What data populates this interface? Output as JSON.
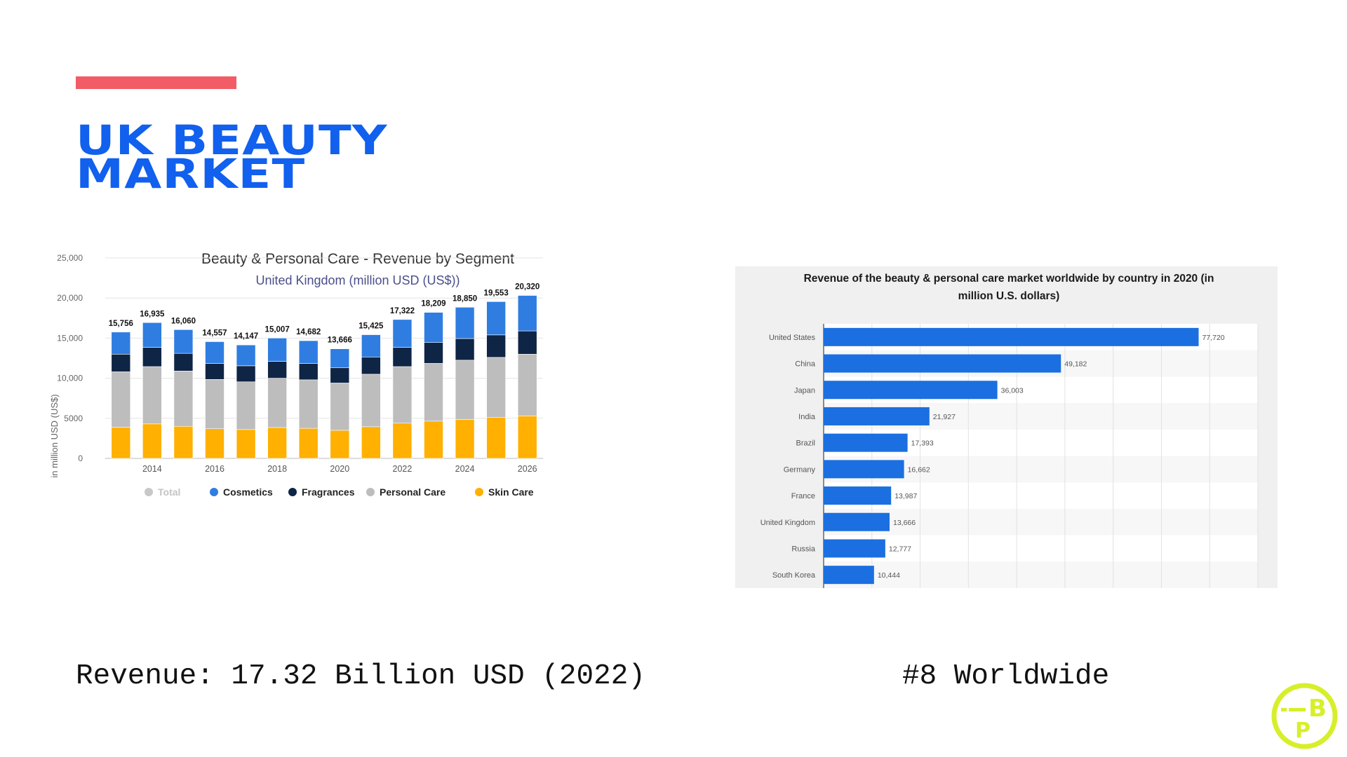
{
  "slide": {
    "title_line1": "UK BEAUTY",
    "title_line2": "MARKET",
    "revenue_caption": "Revenue: 17.32 Billion USD (2022)",
    "rank_caption": "#8 Worldwide",
    "accent_color": "#f25c66",
    "title_color": "#1160ee",
    "logo_color": "#d7ef2a",
    "logo_letters": [
      "B",
      "P"
    ]
  },
  "chart_data": [
    {
      "type": "bar",
      "stacked": true,
      "title": "Beauty & Personal Care - Revenue by Segment",
      "subtitle": "United Kingdom (million USD (US$))",
      "ylabel": "in million USD (US$)",
      "xlabel": "",
      "ylim": [
        0,
        25000
      ],
      "yticks": [
        0,
        5000,
        10000,
        15000,
        20000,
        25000
      ],
      "ytick_labels": [
        "0",
        "5000",
        "10,000",
        "15,000",
        "20,000",
        "25,000"
      ],
      "categories": [
        "2013",
        "2014",
        "2015",
        "2016",
        "2017",
        "2018",
        "2019",
        "2020",
        "2021",
        "2022",
        "2023",
        "2024",
        "2025",
        "2026"
      ],
      "xtick_labels": [
        "",
        "2014",
        "",
        "2016",
        "",
        "2018",
        "",
        "2020",
        "",
        "2022",
        "",
        "2024",
        "",
        "2026"
      ],
      "totals": [
        15756,
        16935,
        16060,
        14557,
        14147,
        15007,
        14682,
        13666,
        15425,
        17322,
        18209,
        18850,
        19553,
        20320
      ],
      "total_labels": [
        "15,756",
        "16,935",
        "16,060",
        "14,557",
        "14,147",
        "15,007",
        "14,682",
        "13,666",
        "15,425",
        "17,322",
        "18,209",
        "18,850",
        "19,553",
        "20,320"
      ],
      "series": [
        {
          "name": "Skin Care",
          "color": "#ffb000",
          "values": [
            3900,
            4300,
            4000,
            3700,
            3600,
            3850,
            3750,
            3500,
            3950,
            4400,
            4650,
            4850,
            5100,
            5300
          ]
        },
        {
          "name": "Personal Care",
          "color": "#bdbdbd",
          "values": [
            6900,
            7150,
            6900,
            6150,
            5950,
            6150,
            6050,
            5900,
            6550,
            7050,
            7200,
            7400,
            7500,
            7700
          ]
        },
        {
          "name": "Fragrances",
          "color": "#0f2545",
          "values": [
            2200,
            2400,
            2200,
            2000,
            2000,
            2100,
            2050,
            1900,
            2150,
            2400,
            2600,
            2700,
            2800,
            2900
          ]
        },
        {
          "name": "Cosmetics",
          "color": "#2f7de1",
          "values": [
            2756,
            3085,
            2960,
            2707,
            2597,
            2907,
            2832,
            2366,
            2775,
            3472,
            3759,
            3900,
            4153,
            4420
          ]
        }
      ],
      "legend": [
        {
          "name": "Total",
          "color": "#c8c8c8",
          "muted": true
        },
        {
          "name": "Cosmetics",
          "color": "#2f7de1",
          "muted": false
        },
        {
          "name": "Fragrances",
          "color": "#0f2545",
          "muted": false
        },
        {
          "name": "Personal Care",
          "color": "#bdbdbd",
          "muted": false
        },
        {
          "name": "Skin Care",
          "color": "#ffb000",
          "muted": false
        }
      ],
      "legend_position": "bottom",
      "grid": true
    },
    {
      "type": "bar",
      "orientation": "horizontal",
      "title_line1": "Revenue of the beauty & personal care market worldwide by country in 2020 (in",
      "title_line2": "million U.S. dollars)",
      "categories": [
        "United States",
        "China",
        "Japan",
        "India",
        "Brazil",
        "Germany",
        "France",
        "United Kingdom",
        "Russia",
        "South Korea"
      ],
      "values": [
        77720,
        49182,
        36003,
        21927,
        17393,
        16662,
        13987,
        13666,
        12777,
        10444
      ],
      "value_labels": [
        "77,720",
        "49,182",
        "36,003",
        "21,927",
        "17,393",
        "16,662",
        "13,987",
        "13,666",
        "12,777",
        "10,444"
      ],
      "xlim": [
        0,
        90000
      ],
      "grid": true,
      "bar_color": "#1b6fe0"
    }
  ]
}
